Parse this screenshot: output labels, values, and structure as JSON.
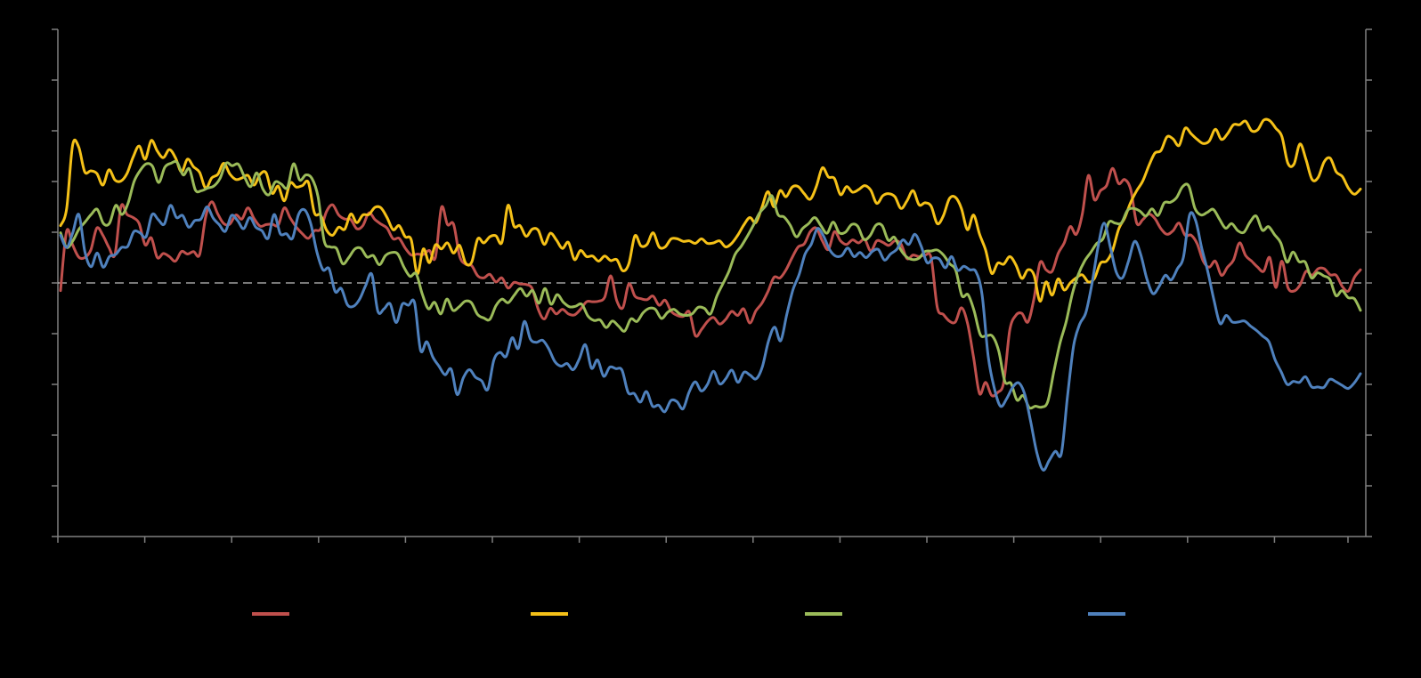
{
  "chart_data": {
    "type": "line",
    "background": "#000000",
    "axis_color": "#808080",
    "dashed_reference_line": {
      "y": 50,
      "color": "#bfbfbf"
    },
    "x_count": 16,
    "ylim": [
      0,
      100
    ],
    "y_major_step": 10,
    "series": [
      {
        "name": "",
        "color": "#c0504d",
        "values": [
          48.5,
          60.2,
          57.5,
          55.1,
          55.0,
          56.5,
          60.8,
          59.4,
          57.0,
          55.6,
          65.1,
          63.5,
          62.9,
          61.7,
          57.5,
          58.9,
          55.0,
          55.8,
          55.2,
          54.3,
          56.2,
          55.7,
          56.2,
          55.6,
          63.0,
          66.0,
          63.6,
          61.7,
          61.6,
          63.4,
          62.6,
          64.8,
          62.7,
          61.2,
          61.5,
          61.6,
          61.4,
          64.8,
          62.8,
          61.0,
          59.7,
          58.8,
          60.3,
          60.6,
          64.1,
          65.4,
          63.4,
          62.6,
          62.5,
          60.7,
          61.3,
          63.8,
          62.5,
          61.6,
          60.8,
          58.7,
          58.8,
          56.9,
          55.5,
          55.7,
          55.6,
          56.4,
          55.0,
          64.9,
          61.5,
          61.6,
          55.3,
          53.7,
          53.4,
          51.4,
          51.0,
          51.7,
          50.2,
          51.0,
          49.0,
          50.1,
          49.8,
          49.7,
          48.9,
          44.8,
          42.9,
          45.0,
          43.9,
          44.8,
          43.9,
          43.7,
          44.8,
          46.3,
          46.3,
          46.4,
          47.2,
          51.4,
          46.5,
          45.1,
          49.8,
          47.4,
          46.9,
          46.7,
          47.4,
          45.6,
          46.6,
          44.4,
          43.6,
          43.4,
          44.3,
          39.6,
          40.8,
          42.4,
          43.2,
          41.9,
          42.8,
          44.4,
          43.6,
          44.9,
          42.1,
          44.5,
          46.0,
          48.3,
          51.1,
          51.0,
          52.6,
          55.0,
          57.1,
          57.7,
          60.1,
          60.8,
          58.3,
          56.6,
          60.1,
          58.3,
          57.6,
          58.5,
          57.9,
          58.6,
          56.3,
          58.3,
          58.0,
          57.4,
          58.3,
          57.7,
          54.8,
          55.5,
          55.2,
          55.5,
          54.9,
          45.2,
          43.8,
          42.5,
          42.3,
          45.1,
          42.1,
          35.4,
          28.2,
          30.4,
          27.8,
          28.4,
          30.4,
          40.7,
          43.6,
          44.0,
          42.3,
          46.9,
          54.0,
          52.6,
          52.3,
          55.8,
          57.9,
          61.1,
          59.6,
          63.6,
          71.2,
          66.4,
          68.2,
          69.2,
          72.6,
          69.6,
          70.4,
          68.4,
          61.8,
          62.5,
          63.6,
          62.7,
          60.7,
          59.6,
          60.3,
          61.8,
          59.4,
          59.4,
          57.7,
          54.3,
          53.1,
          54.3,
          51.5,
          53.1,
          54.5,
          57.9,
          55.4,
          54.3,
          53.1,
          52.3,
          55.0,
          49.1,
          54.3,
          49.1,
          48.4,
          49.6,
          52.3,
          51.5,
          52.8,
          52.8,
          51.6,
          51.5,
          49.3,
          48.4,
          51.1,
          52.6
        ]
      },
      {
        "name": "",
        "color": "#f5c118",
        "values": [
          61.3,
          64.6,
          77.2,
          76.8,
          71.9,
          72.1,
          71.6,
          69.3,
          72.3,
          70.3,
          70.1,
          71.6,
          74.8,
          77.0,
          74.4,
          78.1,
          76.0,
          74.7,
          76.3,
          74.7,
          71.9,
          74.4,
          72.9,
          71.8,
          68.7,
          70.7,
          71.4,
          73.6,
          71.5,
          70.4,
          70.7,
          71.2,
          69.3,
          71.4,
          71.7,
          67.7,
          69.1,
          66.2,
          69.7,
          68.9,
          69.2,
          69.8,
          63.8,
          63.4,
          60.4,
          59.4,
          61.0,
          60.6,
          63.6,
          61.9,
          63.4,
          63.5,
          64.9,
          64.8,
          62.9,
          60.5,
          61.3,
          59.1,
          58.5,
          51.8,
          56.7,
          54.0,
          57.5,
          56.7,
          57.9,
          55.9,
          57.4,
          53.9,
          54.1,
          58.7,
          57.9,
          59.1,
          59.3,
          58.0,
          65.3,
          61.2,
          61.3,
          59.2,
          60.6,
          60.4,
          57.6,
          59.8,
          58.5,
          56.8,
          58.0,
          54.6,
          56.4,
          55.2,
          55.3,
          54.3,
          55.3,
          54.4,
          54.6,
          52.4,
          53.8,
          59.3,
          57.3,
          57.6,
          59.9,
          57.1,
          57.1,
          58.7,
          58.7,
          58.2,
          58.3,
          57.8,
          58.7,
          57.8,
          57.9,
          58.3,
          57.1,
          57.8,
          59.4,
          61.4,
          62.9,
          61.9,
          64.9,
          68.0,
          65.0,
          68.2,
          67.0,
          68.9,
          69.0,
          67.6,
          66.5,
          69.0,
          72.7,
          70.9,
          70.6,
          67.4,
          69.0,
          67.9,
          68.4,
          69.2,
          68.3,
          65.7,
          67.2,
          67.6,
          67.0,
          64.7,
          66.2,
          68.2,
          65.4,
          65.8,
          65.1,
          61.7,
          63.2,
          66.6,
          66.9,
          64.7,
          60.5,
          63.4,
          59.6,
          56.5,
          51.9,
          53.9,
          53.7,
          55.2,
          53.6,
          50.9,
          52.6,
          51.6,
          46.4,
          50.2,
          47.6,
          50.8,
          48.6,
          50.0,
          51.0,
          51.6,
          50.2,
          50.9,
          53.9,
          54.3,
          56.4,
          60.6,
          62.8,
          65.9,
          68.2,
          70.1,
          73.1,
          75.6,
          76.1,
          78.8,
          78.4,
          77.1,
          80.5,
          79.4,
          78.3,
          77.5,
          78.0,
          80.3,
          78.3,
          79.4,
          81.2,
          81.2,
          81.9,
          80.0,
          80.2,
          82.1,
          82.0,
          80.5,
          78.9,
          73.6,
          73.4,
          77.4,
          74.3,
          70.4,
          70.8,
          73.9,
          74.6,
          71.9,
          71.0,
          68.7,
          67.5,
          68.5
        ]
      },
      {
        "name": "",
        "color": "#9bbb59",
        "values": [
          59.9,
          57.0,
          58.3,
          60.6,
          62.0,
          63.5,
          64.5,
          61.7,
          61.8,
          65.3,
          63.5,
          65.7,
          70.0,
          72.2,
          73.5,
          73.0,
          69.8,
          72.8,
          73.6,
          73.8,
          71.3,
          72.5,
          68.3,
          68.2,
          68.7,
          69.1,
          70.6,
          73.6,
          73.1,
          73.4,
          70.9,
          69.0,
          71.7,
          68.5,
          67.4,
          69.9,
          69.5,
          68.8,
          73.5,
          70.3,
          71.3,
          70.6,
          67.0,
          58.3,
          57.1,
          56.8,
          53.8,
          55.0,
          56.7,
          56.8,
          55.1,
          55.4,
          53.6,
          55.4,
          56.0,
          55.7,
          53.1,
          51.3,
          51.8,
          47.8,
          44.9,
          46.2,
          43.9,
          46.8,
          44.6,
          45.3,
          46.4,
          46.1,
          43.8,
          43.1,
          42.8,
          45.5,
          46.8,
          46.1,
          47.6,
          48.9,
          47.4,
          48.5,
          46.0,
          48.9,
          45.8,
          47.7,
          46.2,
          45.3,
          45.4,
          45.8,
          43.5,
          42.6,
          42.7,
          41.2,
          42.5,
          41.5,
          40.5,
          42.9,
          42.4,
          44.1,
          45.0,
          44.8,
          43.0,
          44.2,
          44.8,
          43.9,
          43.6,
          43.9,
          45.2,
          45.0,
          43.9,
          47.3,
          49.8,
          52.3,
          55.6,
          57.2,
          59.2,
          61.4,
          63.8,
          65.2,
          67.2,
          63.5,
          63.0,
          61.4,
          59.1,
          60.7,
          61.7,
          62.9,
          61.3,
          59.8,
          62.0,
          59.9,
          60.0,
          61.5,
          61.2,
          58.6,
          59.3,
          61.4,
          61.3,
          58.4,
          59.0,
          56.6,
          55.1,
          54.6,
          54.9,
          56.2,
          56.3,
          56.5,
          55.5,
          53.8,
          52.5,
          47.5,
          47.7,
          44.5,
          39.8,
          39.6,
          39.5,
          36.6,
          30.6,
          30.2,
          26.9,
          27.8,
          25.4,
          25.7,
          25.5,
          26.6,
          32.6,
          38.1,
          42.3,
          47.8,
          51.7,
          54.3,
          56.0,
          57.8,
          58.7,
          62.0,
          61.8,
          61.8,
          64.3,
          64.7,
          64.2,
          63.2,
          64.6,
          63.3,
          65.8,
          65.9,
          66.8,
          69.0,
          69.1,
          64.7,
          63.4,
          63.9,
          64.5,
          62.6,
          60.8,
          61.7,
          60.3,
          60.0,
          62.0,
          63.2,
          60.4,
          61.1,
          59.5,
          57.9,
          54.1,
          56.1,
          54.2,
          54.1,
          51.0,
          52.0,
          51.4,
          50.7,
          47.5,
          48.5,
          47.1,
          46.9,
          44.6
        ]
      },
      {
        "name": "",
        "color": "#4f81bd",
        "values": [
          59.4,
          57.0,
          59.9,
          63.5,
          56.1,
          53.2,
          55.9,
          53.1,
          55.2,
          55.6,
          57.0,
          57.2,
          60.1,
          59.9,
          59.1,
          63.5,
          62.5,
          61.6,
          65.3,
          62.9,
          63.3,
          61.0,
          62.3,
          62.6,
          65.0,
          62.8,
          61.5,
          60.2,
          63.3,
          62.3,
          60.7,
          62.9,
          61.0,
          60.3,
          58.8,
          63.5,
          59.7,
          59.7,
          58.8,
          63.5,
          64.4,
          61.7,
          56.1,
          52.6,
          52.8,
          48.3,
          48.9,
          45.7,
          45.4,
          46.8,
          49.5,
          51.7,
          44.4,
          44.9,
          45.9,
          42.2,
          45.8,
          45.6,
          46.1,
          36.7,
          38.4,
          35.4,
          33.6,
          31.9,
          33.0,
          28.0,
          31.3,
          32.9,
          31.4,
          30.7,
          29.0,
          34.8,
          36.3,
          35.5,
          39.2,
          37.1,
          42.4,
          38.9,
          38.3,
          38.7,
          37.0,
          34.5,
          33.6,
          34.1,
          32.9,
          35.0,
          37.8,
          33.2,
          34.8,
          31.6,
          33.4,
          33.1,
          32.8,
          28.4,
          28.2,
          26.5,
          28.6,
          25.7,
          25.9,
          24.6,
          26.8,
          26.6,
          25.2,
          28.5,
          30.5,
          28.7,
          30.0,
          32.6,
          30.1,
          31.1,
          32.8,
          30.4,
          32.4,
          31.8,
          31.1,
          33.5,
          38.5,
          41.3,
          38.6,
          43.8,
          48.6,
          51.6,
          55.7,
          57.6,
          60.7,
          59.3,
          56.6,
          55.3,
          55.4,
          56.9,
          55.2,
          56.0,
          55.0,
          56.2,
          56.6,
          54.5,
          55.7,
          56.6,
          58.5,
          57.6,
          59.6,
          57.3,
          54.0,
          54.9,
          54.7,
          53.0,
          55.2,
          52.5,
          53.3,
          52.6,
          52.2,
          47.7,
          35.5,
          29.3,
          25.7,
          27.1,
          29.4,
          30.3,
          28.0,
          22.4,
          16.4,
          13.1,
          15.0,
          16.8,
          16.4,
          27.7,
          37.6,
          41.9,
          44.1,
          49.8,
          57.1,
          61.8,
          57.1,
          52.1,
          51.0,
          54.3,
          58.2,
          55.6,
          50.8,
          47.9,
          49.3,
          51.5,
          50.6,
          52.8,
          55.1,
          63.4,
          62.3,
          56.8,
          52.2,
          46.6,
          42.0,
          43.6,
          42.3,
          42.3,
          42.5,
          41.5,
          40.6,
          39.5,
          38.4,
          34.9,
          32.5,
          30.0,
          30.6,
          30.4,
          31.5,
          29.5,
          29.5,
          29.4,
          31.0,
          30.5,
          29.8,
          29.2,
          30.3,
          32.1
        ]
      }
    ]
  }
}
